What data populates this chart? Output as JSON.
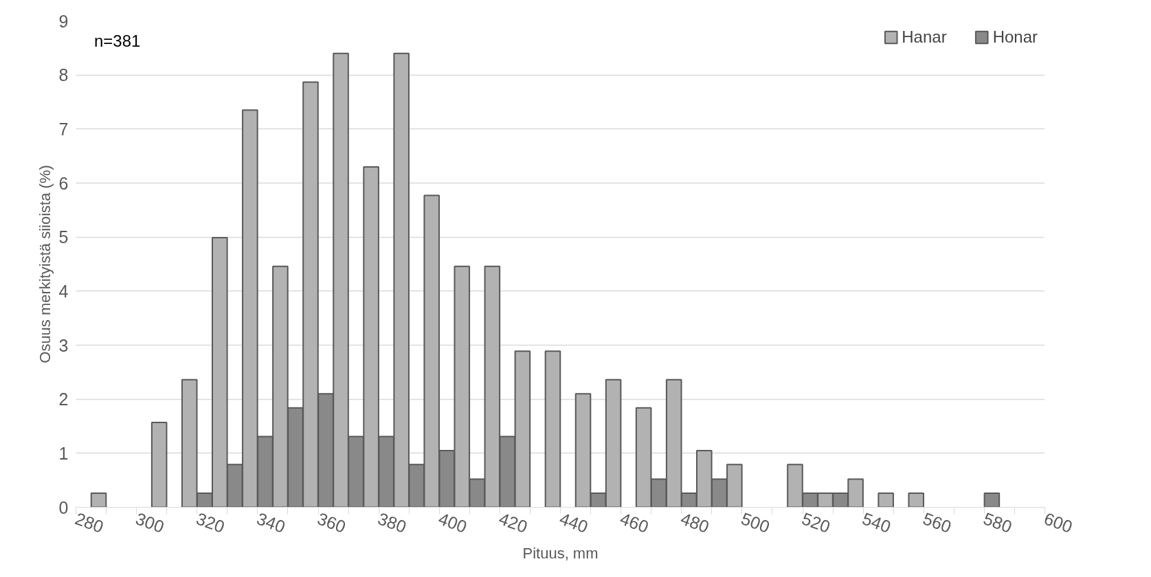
{
  "chart_data": {
    "type": "bar",
    "xlabel": "Pituus, mm",
    "ylabel": "Osuus merkityistä siioista (%)",
    "annotations": [
      "n=381"
    ],
    "x": [
      290,
      300,
      310,
      320,
      330,
      340,
      350,
      360,
      370,
      380,
      390,
      400,
      410,
      420,
      430,
      440,
      450,
      460,
      470,
      480,
      490,
      500,
      510,
      520,
      530,
      540,
      550,
      560,
      570,
      580,
      590
    ],
    "series": [
      {
        "name": "Hanar",
        "color": "#b2b2b2",
        "values": [
          0.26,
          0,
          1.57,
          2.36,
          4.99,
          7.35,
          4.46,
          7.87,
          8.4,
          6.3,
          8.4,
          5.77,
          4.46,
          4.46,
          2.89,
          2.89,
          2.1,
          2.36,
          1.84,
          2.36,
          1.05,
          0.79,
          0,
          0.79,
          0.26,
          0.52,
          0.26,
          0.26,
          0,
          0,
          0
        ]
      },
      {
        "name": "Honar",
        "color": "#898989",
        "values": [
          0,
          0,
          0,
          0.26,
          0.79,
          1.31,
          1.84,
          2.1,
          1.31,
          1.31,
          0.79,
          1.05,
          0.52,
          1.31,
          0,
          0,
          0.26,
          0,
          0.52,
          0.26,
          0.52,
          0,
          0,
          0.26,
          0.26,
          0,
          0,
          0,
          0,
          0.26,
          0
        ]
      }
    ],
    "xlim": [
      280,
      600
    ],
    "xticks": [
      280,
      {
        "value": 290,
        "label": null
      },
      300,
      {
        "value": 310,
        "label": null
      },
      320,
      {
        "value": 330,
        "label": null
      },
      340,
      {
        "value": 350,
        "label": null
      },
      360,
      {
        "value": 370,
        "label": null
      },
      380,
      {
        "value": 390,
        "label": null
      },
      400,
      {
        "value": 410,
        "label": null
      },
      420,
      {
        "value": 430,
        "label": null
      },
      440,
      {
        "value": 450,
        "label": null
      },
      460,
      {
        "value": 470,
        "label": null
      },
      480,
      {
        "value": 490,
        "label": null
      },
      500,
      {
        "value": 510,
        "label": null
      },
      520,
      {
        "value": 530,
        "label": null
      },
      540,
      {
        "value": 550,
        "label": null
      },
      560,
      {
        "value": 570,
        "label": null
      },
      580,
      {
        "value": 590,
        "label": null
      },
      600
    ],
    "ylim": [
      0,
      9
    ],
    "yticks": [
      0,
      1,
      2,
      3,
      4,
      5,
      6,
      7,
      8,
      9
    ],
    "grid": "y",
    "legend": "top right"
  }
}
